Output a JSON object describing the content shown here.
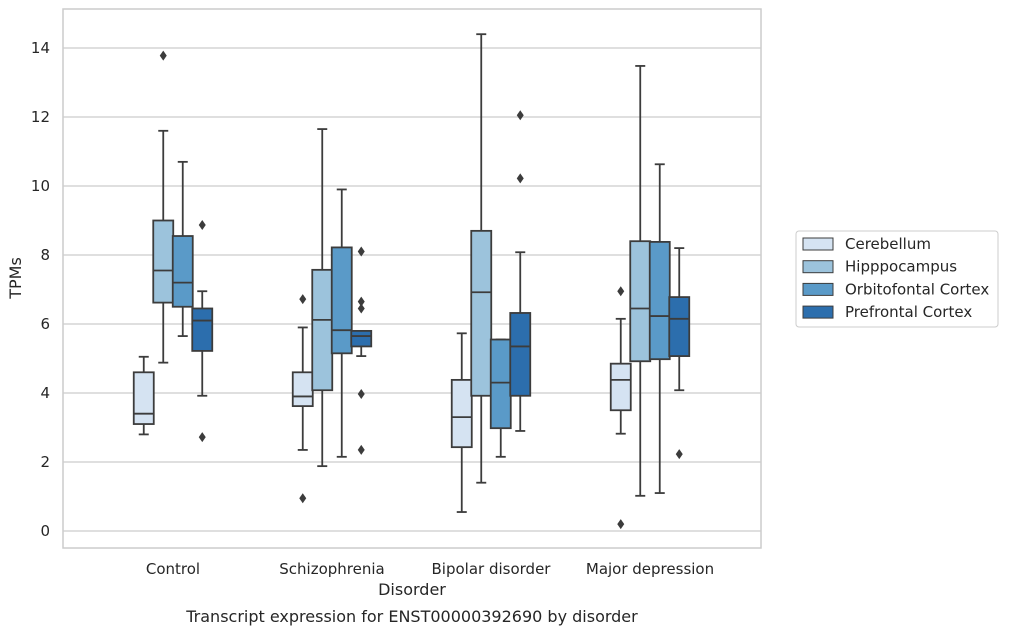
{
  "chart_data": {
    "type": "box",
    "caption": "Transcript expression for ENST00000392690 by disorder",
    "xlabel": "Disorder",
    "ylabel": "TPMs",
    "ylim": [
      -0.5,
      15.1
    ],
    "yticks": [
      0,
      2,
      4,
      6,
      8,
      10,
      12,
      14
    ],
    "grid": "y",
    "legend_position": "right",
    "categories": [
      "Control",
      "Schizophrenia",
      "Bipolar disorder",
      "Major depression"
    ],
    "series": [
      {
        "name": "Cerebellum",
        "color": "#d5e3f2",
        "boxes": [
          {
            "low": 2.8,
            "q1": 3.1,
            "median": 3.4,
            "q3": 4.6,
            "high": 5.05,
            "outliers": []
          },
          {
            "low": 2.35,
            "q1": 3.62,
            "median": 3.9,
            "q3": 4.6,
            "high": 5.9,
            "outliers": [
              6.72,
              0.95
            ]
          },
          {
            "low": 0.55,
            "q1": 2.43,
            "median": 3.3,
            "q3": 4.38,
            "high": 5.73,
            "outliers": []
          },
          {
            "low": 2.82,
            "q1": 3.5,
            "median": 4.38,
            "q3": 4.85,
            "high": 6.15,
            "outliers": [
              6.95,
              0.2
            ]
          }
        ]
      },
      {
        "name": "Hipppocampus",
        "color": "#9cc3dc",
        "boxes": [
          {
            "low": 4.88,
            "q1": 6.62,
            "median": 7.55,
            "q3": 9.0,
            "high": 11.6,
            "outliers": [
              13.78
            ]
          },
          {
            "low": 1.88,
            "q1": 4.08,
            "median": 6.12,
            "q3": 7.57,
            "high": 11.65,
            "outliers": []
          },
          {
            "low": 1.4,
            "q1": 3.92,
            "median": 6.92,
            "q3": 8.7,
            "high": 14.4,
            "outliers": []
          },
          {
            "low": 1.02,
            "q1": 4.92,
            "median": 6.45,
            "q3": 8.4,
            "high": 13.48,
            "outliers": []
          }
        ]
      },
      {
        "name": "Orbitofontal Cortex",
        "color": "#5a9ac8",
        "boxes": [
          {
            "low": 5.65,
            "q1": 6.5,
            "median": 7.2,
            "q3": 8.55,
            "high": 10.7,
            "outliers": []
          },
          {
            "low": 2.15,
            "q1": 5.15,
            "median": 5.82,
            "q3": 8.22,
            "high": 9.9,
            "outliers": []
          },
          {
            "low": 2.15,
            "q1": 2.98,
            "median": 4.3,
            "q3": 5.55,
            "high": 5.55,
            "outliers": []
          },
          {
            "low": 1.1,
            "q1": 4.98,
            "median": 6.23,
            "q3": 8.38,
            "high": 10.63,
            "outliers": []
          }
        ]
      },
      {
        "name": "Prefrontal Cortex",
        "color": "#2c6ead",
        "boxes": [
          {
            "low": 3.92,
            "q1": 5.22,
            "median": 6.1,
            "q3": 6.45,
            "high": 6.95,
            "outliers": [
              8.87,
              2.72
            ]
          },
          {
            "low": 5.07,
            "q1": 5.35,
            "median": 5.65,
            "q3": 5.8,
            "high": 5.8,
            "outliers": [
              8.1,
              6.65,
              6.45,
              3.97,
              2.35
            ]
          },
          {
            "low": 2.9,
            "q1": 3.92,
            "median": 5.35,
            "q3": 6.32,
            "high": 8.08,
            "outliers": [
              12.05,
              10.22
            ]
          },
          {
            "low": 4.08,
            "q1": 5.07,
            "median": 6.15,
            "q3": 6.78,
            "high": 8.2,
            "outliers": [
              2.23
            ]
          }
        ]
      }
    ]
  }
}
